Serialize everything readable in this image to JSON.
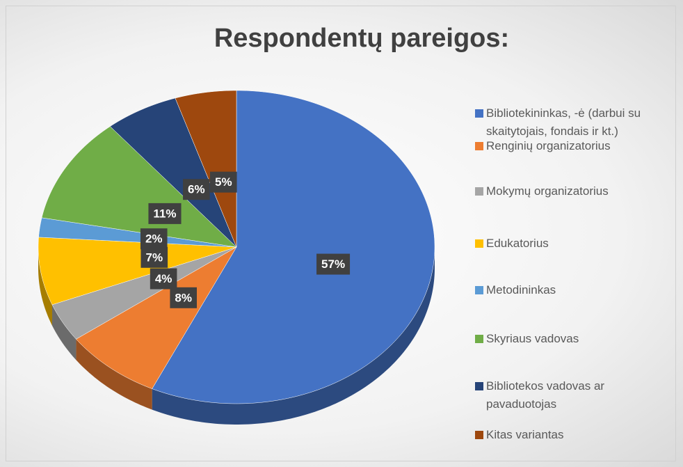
{
  "chart_data": {
    "type": "pie",
    "title": "Respondentų pareigos:",
    "categories": [
      "Bibliotekininkas, -ė (darbui su skaitytojais, fondais ir kt.)",
      "Renginių organizatorius",
      "Mokymų organizatorius",
      "Edukatorius",
      "Metodininkas",
      "Skyriaus vadovas",
      "Bibliotekos vadovas ar pavaduotojas",
      "Kitas variantas"
    ],
    "values": [
      57,
      8,
      4,
      7,
      2,
      11,
      6,
      5
    ],
    "value_labels": [
      "57%",
      "8%",
      "4%",
      "7%",
      "2%",
      "11%",
      "6%",
      "5%"
    ],
    "colors": [
      "#4472c4",
      "#ed7d31",
      "#a5a5a5",
      "#ffc000",
      "#5b9bd5",
      "#70ad47",
      "#264478",
      "#9e480e"
    ],
    "legend": "right"
  }
}
